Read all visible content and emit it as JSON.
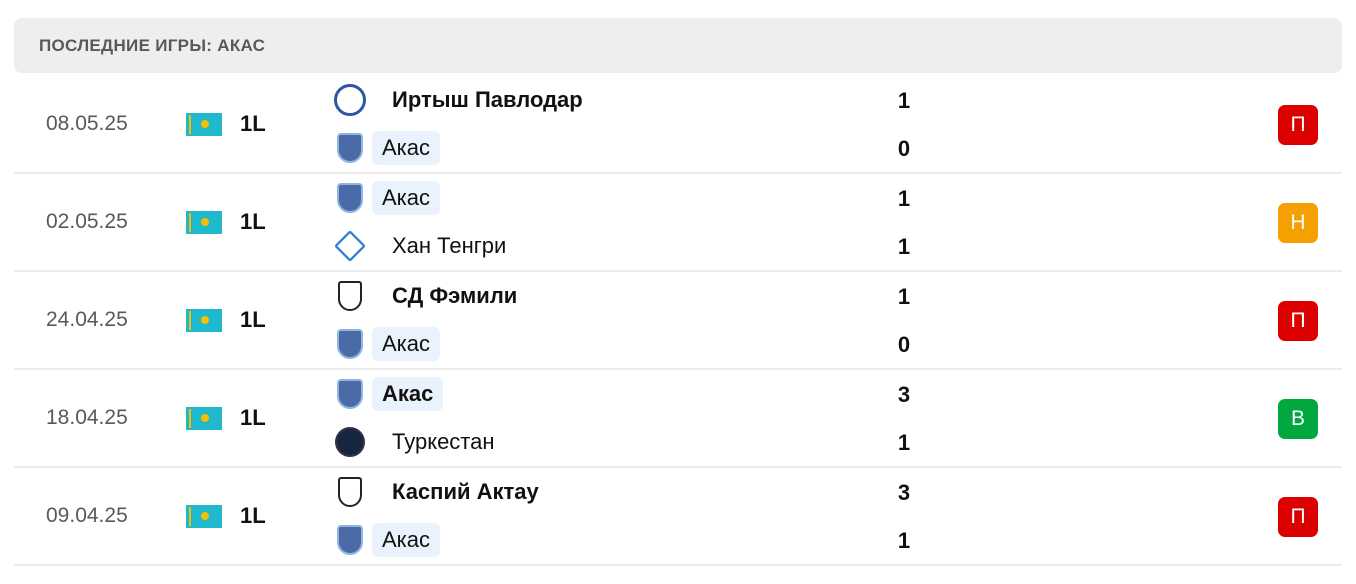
{
  "title": "ПОСЛЕДНИЕ ИГРЫ: АКАС",
  "colors": {
    "loss": "#dc0000",
    "draw": "#f5a000",
    "win": "#00a83f"
  },
  "matches": [
    {
      "date": "08.05.25",
      "league": "1L",
      "country": "Kazakhstan",
      "home": {
        "name": "Иртыш Павлодар",
        "score": "1",
        "logo": "round",
        "bold": true,
        "hl": false
      },
      "away": {
        "name": "Акас",
        "score": "0",
        "logo": "akas",
        "bold": false,
        "hl": true
      },
      "result": "П",
      "result_type": "loss"
    },
    {
      "date": "02.05.25",
      "league": "1L",
      "country": "Kazakhstan",
      "home": {
        "name": "Акас",
        "score": "1",
        "logo": "akas",
        "bold": false,
        "hl": true
      },
      "away": {
        "name": "Хан Тенгри",
        "score": "1",
        "logo": "han",
        "bold": false,
        "hl": false
      },
      "result": "Н",
      "result_type": "draw"
    },
    {
      "date": "24.04.25",
      "league": "1L",
      "country": "Kazakhstan",
      "home": {
        "name": "СД Фэмили",
        "score": "1",
        "logo": "shield",
        "bold": true,
        "hl": false
      },
      "away": {
        "name": "Акас",
        "score": "0",
        "logo": "akas",
        "bold": false,
        "hl": true
      },
      "result": "П",
      "result_type": "loss"
    },
    {
      "date": "18.04.25",
      "league": "1L",
      "country": "Kazakhstan",
      "home": {
        "name": "Акас",
        "score": "3",
        "logo": "akas",
        "bold": true,
        "hl": true
      },
      "away": {
        "name": "Туркестан",
        "score": "1",
        "logo": "dark",
        "bold": false,
        "hl": false
      },
      "result": "В",
      "result_type": "win"
    },
    {
      "date": "09.04.25",
      "league": "1L",
      "country": "Kazakhstan",
      "home": {
        "name": "Каспий Актау",
        "score": "3",
        "logo": "shield",
        "bold": true,
        "hl": false
      },
      "away": {
        "name": "Акас",
        "score": "1",
        "logo": "akas",
        "bold": false,
        "hl": true
      },
      "result": "П",
      "result_type": "loss"
    }
  ]
}
